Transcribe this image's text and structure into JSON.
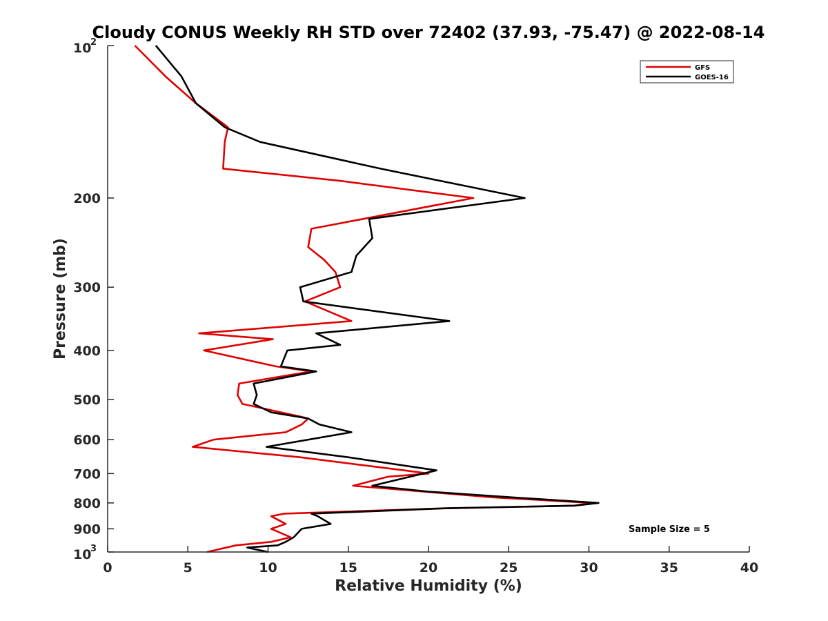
{
  "chart_data": {
    "type": "line",
    "title": "Cloudy CONUS Weekly RH STD over 72402 (37.93, -75.47) @ 2022-08-14",
    "xlabel": "Relative Humidity (%)",
    "ylabel": "Pressure (mb)",
    "xlim": [
      0,
      40
    ],
    "ylim": [
      100,
      1000
    ],
    "yscale": "log",
    "y_reversed": true,
    "grid": false,
    "legend_position": "top-right",
    "x_ticks": [
      "0",
      "5",
      "10",
      "15",
      "20",
      "25",
      "30",
      "35",
      "40"
    ],
    "y_ticks": [
      {
        "value": 100,
        "base": "10",
        "exp": "2"
      },
      {
        "value": 200,
        "label": "200"
      },
      {
        "value": 300,
        "label": "300"
      },
      {
        "value": 400,
        "label": "400"
      },
      {
        "value": 500,
        "label": "500"
      },
      {
        "value": 600,
        "label": "600"
      },
      {
        "value": 700,
        "label": "700"
      },
      {
        "value": 800,
        "label": "800"
      },
      {
        "value": 900,
        "label": "900"
      },
      {
        "value": 1000,
        "base": "10",
        "exp": "3"
      }
    ],
    "annotation": "Sample Size = 5",
    "series": [
      {
        "name": "GFS",
        "color": "#e00000",
        "points": [
          [
            1.7,
            100
          ],
          [
            3.6,
            115
          ],
          [
            5.5,
            130
          ],
          [
            7.5,
            145
          ],
          [
            7.3,
            155
          ],
          [
            7.2,
            175
          ],
          [
            14.5,
            185
          ],
          [
            22.8,
            200
          ],
          [
            12.7,
            230
          ],
          [
            12.5,
            250
          ],
          [
            13.5,
            265
          ],
          [
            14.2,
            280
          ],
          [
            14.5,
            300
          ],
          [
            12.3,
            320
          ],
          [
            15.2,
            350
          ],
          [
            5.7,
            370
          ],
          [
            10.3,
            380
          ],
          [
            6.0,
            400
          ],
          [
            10.5,
            430
          ],
          [
            12.7,
            440
          ],
          [
            8.2,
            465
          ],
          [
            8.1,
            490
          ],
          [
            8.4,
            510
          ],
          [
            12.0,
            540
          ],
          [
            12.5,
            545
          ],
          [
            12.1,
            560
          ],
          [
            11.1,
            580
          ],
          [
            6.6,
            600
          ],
          [
            5.3,
            620
          ],
          [
            12.0,
            650
          ],
          [
            18.5,
            690
          ],
          [
            20.0,
            700
          ],
          [
            17.5,
            710
          ],
          [
            15.3,
            740
          ],
          [
            19.7,
            760
          ],
          [
            24.0,
            780
          ],
          [
            30.2,
            800
          ],
          [
            29.1,
            810
          ],
          [
            21.0,
            820
          ],
          [
            11.0,
            840
          ],
          [
            10.2,
            850
          ],
          [
            11.1,
            880
          ],
          [
            10.2,
            900
          ],
          [
            11.4,
            935
          ],
          [
            10.2,
            955
          ],
          [
            8.0,
            970
          ],
          [
            6.2,
            1000
          ]
        ]
      },
      {
        "name": "GOES-16",
        "color": "#000000",
        "points": [
          [
            3.0,
            100
          ],
          [
            4.6,
            115
          ],
          [
            5.5,
            130
          ],
          [
            7.3,
            145
          ],
          [
            9.5,
            155
          ],
          [
            17.0,
            175
          ],
          [
            26.0,
            200
          ],
          [
            16.3,
            220
          ],
          [
            16.5,
            240
          ],
          [
            15.5,
            260
          ],
          [
            15.2,
            280
          ],
          [
            12.0,
            300
          ],
          [
            12.2,
            320
          ],
          [
            21.3,
            350
          ],
          [
            13.0,
            370
          ],
          [
            14.5,
            390
          ],
          [
            11.2,
            400
          ],
          [
            10.8,
            430
          ],
          [
            13.0,
            440
          ],
          [
            9.1,
            465
          ],
          [
            9.3,
            490
          ],
          [
            9.1,
            510
          ],
          [
            10.2,
            530
          ],
          [
            12.5,
            545
          ],
          [
            13.2,
            560
          ],
          [
            15.2,
            580
          ],
          [
            9.9,
            620
          ],
          [
            15.0,
            650
          ],
          [
            20.5,
            690
          ],
          [
            16.5,
            740
          ],
          [
            20.0,
            760
          ],
          [
            25.2,
            780
          ],
          [
            30.6,
            800
          ],
          [
            29.1,
            810
          ],
          [
            21.0,
            820
          ],
          [
            12.7,
            840
          ],
          [
            13.1,
            850
          ],
          [
            13.9,
            880
          ],
          [
            12.1,
            900
          ],
          [
            11.6,
            935
          ],
          [
            11.1,
            955
          ],
          [
            10.6,
            970
          ],
          [
            8.7,
            980
          ],
          [
            10.0,
            1000
          ]
        ]
      }
    ]
  }
}
